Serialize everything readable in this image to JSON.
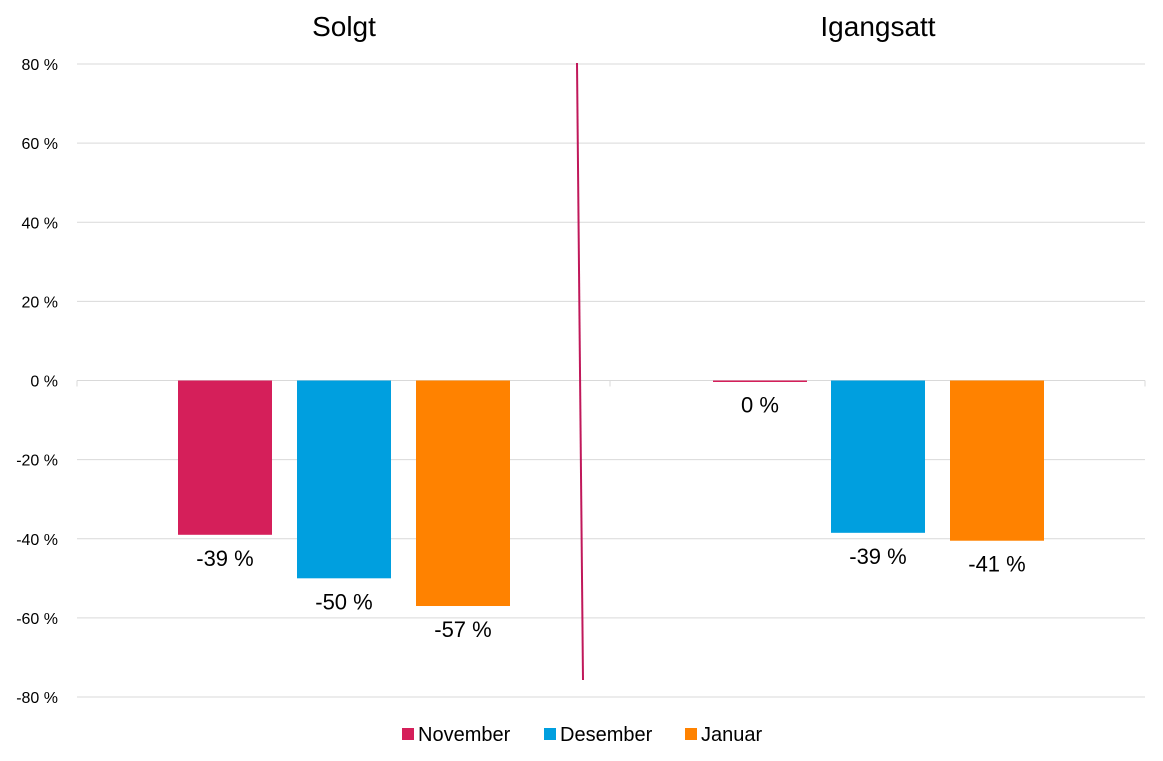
{
  "chart_data": {
    "type": "bar",
    "ylim": [
      -80,
      80
    ],
    "yticks": [
      "80 %",
      "60 %",
      "40 %",
      "20 %",
      "0 %",
      "-20 %",
      "-40 %",
      "-60 %",
      "-80 %"
    ],
    "ytick_values": [
      80,
      60,
      40,
      20,
      0,
      -20,
      -40,
      -60,
      -80
    ],
    "grid": true,
    "legend_position": "bottom-center",
    "panels": [
      {
        "title": "Solgt",
        "series": [
          {
            "name": "November",
            "value": -39,
            "label": "-39 %"
          },
          {
            "name": "Desember",
            "value": -50,
            "label": "-50 %"
          },
          {
            "name": "Januar",
            "value": -57,
            "label": "-57 %"
          }
        ]
      },
      {
        "title": "Igangsatt",
        "series": [
          {
            "name": "November",
            "value": -0.3,
            "label": "0 %"
          },
          {
            "name": "Desember",
            "value": -38.5,
            "label": "-39 %"
          },
          {
            "name": "Januar",
            "value": -40.5,
            "label": "-41 %"
          }
        ]
      }
    ],
    "legend": [
      {
        "name": "November",
        "color": "#d51f5a"
      },
      {
        "name": "Desember",
        "color": "#009fdf"
      },
      {
        "name": "Januar",
        "color": "#ff8200"
      }
    ],
    "divider_color": "#c0185a"
  }
}
